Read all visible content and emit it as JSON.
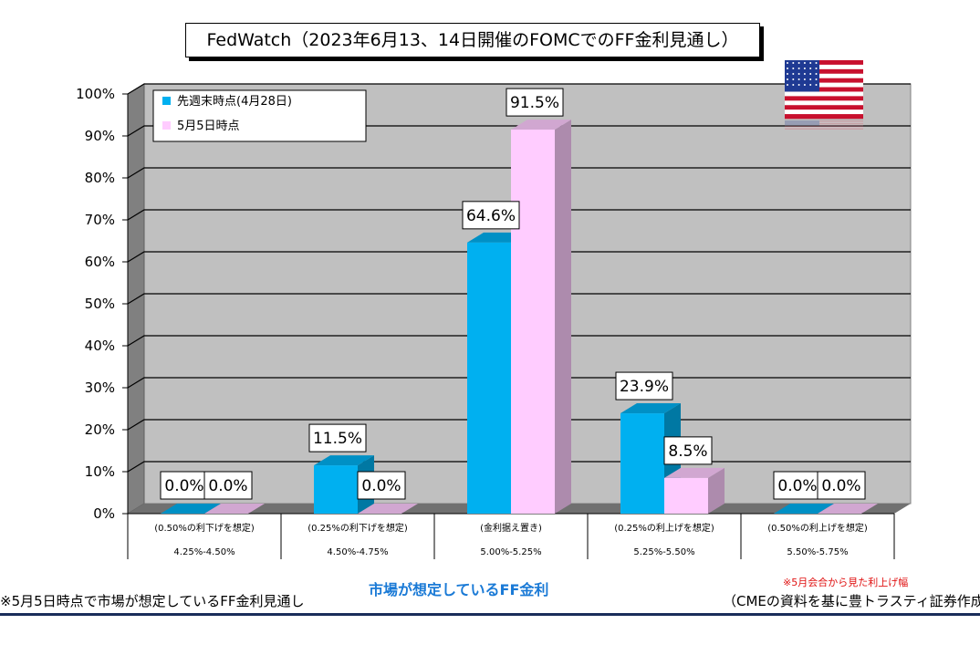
{
  "title": "FedWatch（2023年6月13、14日開催のFOMCでのFF金利見通し）",
  "colors": {
    "series1": "#00b0f0",
    "series2": "#ffccff",
    "wall": "#c0c0c0"
  },
  "flag_icon": "us-flag-icon",
  "chart_data": {
    "type": "bar",
    "categories": [
      {
        "top": "(0.50%の利下げを想定)",
        "bottom": "4.25%-4.50%"
      },
      {
        "top": "(0.25%の利下げを想定)",
        "bottom": "4.50%-4.75%"
      },
      {
        "top": "(金利据え置き)",
        "bottom": "5.00%-5.25%"
      },
      {
        "top": "(0.25%の利上げを想定)",
        "bottom": "5.25%-5.50%"
      },
      {
        "top": "(0.50%の利上げを想定)",
        "bottom": "5.50%-5.75%"
      }
    ],
    "series": [
      {
        "name": "先週末時点(4月28日)",
        "values": [
          0.0,
          11.5,
          64.6,
          23.9,
          0.0
        ],
        "labels": [
          "0.0%",
          "11.5%",
          "64.6%",
          "23.9%",
          "0.0%"
        ]
      },
      {
        "name": "5月5日時点",
        "values": [
          0.0,
          0.0,
          91.5,
          8.5,
          0.0
        ],
        "labels": [
          "0.0%",
          "0.0%",
          "91.5%",
          "8.5%",
          "0.0%"
        ]
      }
    ],
    "yticks": [
      "0%",
      "10%",
      "20%",
      "30%",
      "40%",
      "50%",
      "60%",
      "70%",
      "80%",
      "90%",
      "100%"
    ],
    "ylim": [
      0,
      100
    ],
    "legend_position": "top-left",
    "grid": true
  },
  "footer": {
    "left": "※5月5日時点で市場が想定しているFF金利見通し",
    "center": "市場が想定しているFF金利",
    "note": "※5月会合から見た利上げ幅",
    "source": "（CMEの資料を基に豊トラスティ証券作成）"
  }
}
